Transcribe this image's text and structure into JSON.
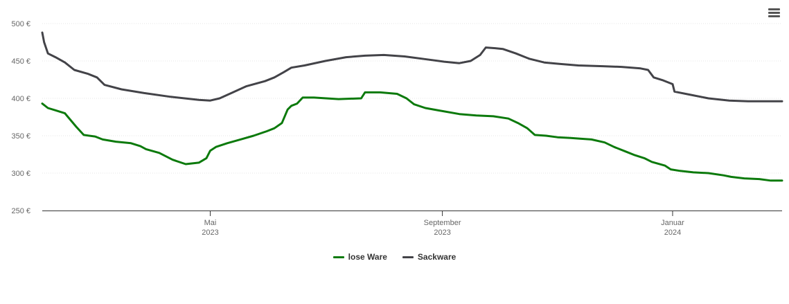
{
  "chart_data": {
    "type": "line",
    "title": "",
    "xlabel": "",
    "ylabel": "",
    "x_range": [
      "2023-02-01",
      "2024-02-28"
    ],
    "ylim": [
      250,
      500
    ],
    "y_ticks": [
      {
        "value": 250,
        "label": "250 €"
      },
      {
        "value": 300,
        "label": "300 €"
      },
      {
        "value": 350,
        "label": "350 €"
      },
      {
        "value": 400,
        "label": "400 €"
      },
      {
        "value": 450,
        "label": "450 €"
      },
      {
        "value": 500,
        "label": "500 €"
      }
    ],
    "x_ticks": [
      {
        "date": "2023-05-01",
        "month": "Mai",
        "year": "2023"
      },
      {
        "date": "2023-09-01",
        "month": "September",
        "year": "2023"
      },
      {
        "date": "2024-01-01",
        "month": "Januar",
        "year": "2024"
      }
    ],
    "grid": "horizontal",
    "legend_position": "bottom-center",
    "series": [
      {
        "name": "lose Ware",
        "color": "#0c7a0c",
        "points": [
          [
            "2023-02-01",
            393
          ],
          [
            "2023-02-04",
            387
          ],
          [
            "2023-02-08",
            384
          ],
          [
            "2023-02-13",
            380
          ],
          [
            "2023-02-19",
            362
          ],
          [
            "2023-02-23",
            351
          ],
          [
            "2023-03-01",
            349
          ],
          [
            "2023-03-05",
            345
          ],
          [
            "2023-03-12",
            342
          ],
          [
            "2023-03-20",
            340
          ],
          [
            "2023-03-25",
            336
          ],
          [
            "2023-03-28",
            332
          ],
          [
            "2023-04-04",
            327
          ],
          [
            "2023-04-11",
            318
          ],
          [
            "2023-04-18",
            312
          ],
          [
            "2023-04-25",
            314
          ],
          [
            "2023-04-29",
            320
          ],
          [
            "2023-05-01",
            330
          ],
          [
            "2023-05-04",
            335
          ],
          [
            "2023-05-10",
            340
          ],
          [
            "2023-05-17",
            345
          ],
          [
            "2023-05-24",
            350
          ],
          [
            "2023-05-31",
            356
          ],
          [
            "2023-06-04",
            360
          ],
          [
            "2023-06-08",
            367
          ],
          [
            "2023-06-11",
            385
          ],
          [
            "2023-06-13",
            390
          ],
          [
            "2023-06-16",
            393
          ],
          [
            "2023-06-19",
            401
          ],
          [
            "2023-06-25",
            401
          ],
          [
            "2023-07-08",
            399
          ],
          [
            "2023-07-20",
            400
          ],
          [
            "2023-07-22",
            408
          ],
          [
            "2023-07-30",
            408
          ],
          [
            "2023-08-08",
            406
          ],
          [
            "2023-08-13",
            400
          ],
          [
            "2023-08-17",
            392
          ],
          [
            "2023-08-23",
            387
          ],
          [
            "2023-09-01",
            383
          ],
          [
            "2023-09-10",
            379
          ],
          [
            "2023-09-19",
            377
          ],
          [
            "2023-09-28",
            376
          ],
          [
            "2023-10-06",
            373
          ],
          [
            "2023-10-11",
            367
          ],
          [
            "2023-10-16",
            360
          ],
          [
            "2023-10-20",
            351
          ],
          [
            "2023-10-26",
            350
          ],
          [
            "2023-11-01",
            348
          ],
          [
            "2023-11-08",
            347
          ],
          [
            "2023-11-13",
            346
          ],
          [
            "2023-11-19",
            345
          ],
          [
            "2023-11-26",
            341
          ],
          [
            "2023-12-01",
            335
          ],
          [
            "2023-12-07",
            329
          ],
          [
            "2023-12-12",
            324
          ],
          [
            "2023-12-17",
            320
          ],
          [
            "2023-12-21",
            315
          ],
          [
            "2023-12-28",
            310
          ],
          [
            "2023-12-31",
            305
          ],
          [
            "2024-01-05",
            303
          ],
          [
            "2024-01-12",
            301
          ],
          [
            "2024-01-20",
            300
          ],
          [
            "2024-01-28",
            297
          ],
          [
            "2024-02-01",
            295
          ],
          [
            "2024-02-08",
            293
          ],
          [
            "2024-02-16",
            292
          ],
          [
            "2024-02-22",
            290
          ],
          [
            "2024-02-28",
            290
          ]
        ]
      },
      {
        "name": "Sackware",
        "color": "#434348",
        "points": [
          [
            "2023-02-01",
            488
          ],
          [
            "2023-02-02",
            475
          ],
          [
            "2023-02-04",
            460
          ],
          [
            "2023-02-08",
            455
          ],
          [
            "2023-02-13",
            448
          ],
          [
            "2023-02-18",
            438
          ],
          [
            "2023-02-25",
            433
          ],
          [
            "2023-03-02",
            428
          ],
          [
            "2023-03-06",
            418
          ],
          [
            "2023-03-15",
            412
          ],
          [
            "2023-03-27",
            407
          ],
          [
            "2023-04-10",
            402
          ],
          [
            "2023-04-25",
            398
          ],
          [
            "2023-05-01",
            397
          ],
          [
            "2023-05-06",
            400
          ],
          [
            "2023-05-13",
            408
          ],
          [
            "2023-05-20",
            416
          ],
          [
            "2023-05-30",
            423
          ],
          [
            "2023-06-04",
            428
          ],
          [
            "2023-06-09",
            435
          ],
          [
            "2023-06-13",
            441
          ],
          [
            "2023-06-20",
            444
          ],
          [
            "2023-07-01",
            450
          ],
          [
            "2023-07-12",
            455
          ],
          [
            "2023-07-22",
            457
          ],
          [
            "2023-08-01",
            458
          ],
          [
            "2023-08-12",
            456
          ],
          [
            "2023-08-24",
            452
          ],
          [
            "2023-09-02",
            449
          ],
          [
            "2023-09-10",
            447
          ],
          [
            "2023-09-16",
            450
          ],
          [
            "2023-09-21",
            458
          ],
          [
            "2023-09-24",
            468
          ],
          [
            "2023-09-29",
            467
          ],
          [
            "2023-10-03",
            466
          ],
          [
            "2023-10-10",
            460
          ],
          [
            "2023-10-17",
            453
          ],
          [
            "2023-10-25",
            448
          ],
          [
            "2023-11-02",
            446
          ],
          [
            "2023-11-12",
            444
          ],
          [
            "2023-11-25",
            443
          ],
          [
            "2023-12-05",
            442
          ],
          [
            "2023-12-15",
            440
          ],
          [
            "2023-12-19",
            438
          ],
          [
            "2023-12-22",
            428
          ],
          [
            "2023-12-27",
            424
          ],
          [
            "2024-01-01",
            419
          ],
          [
            "2024-01-02",
            409
          ],
          [
            "2024-01-10",
            405
          ],
          [
            "2024-01-20",
            400
          ],
          [
            "2024-01-31",
            397
          ],
          [
            "2024-02-10",
            396
          ],
          [
            "2024-02-28",
            396
          ]
        ]
      }
    ]
  },
  "toolbar": {
    "menu_icon": "hamburger-menu-icon"
  }
}
